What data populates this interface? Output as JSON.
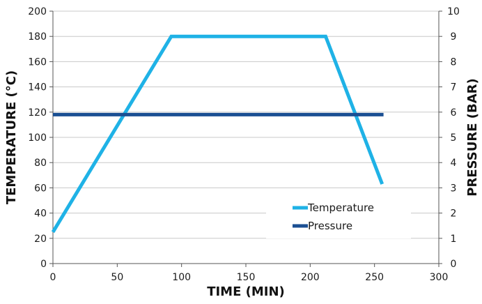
{
  "chart_data": {
    "type": "line",
    "xlabel": "TIME (MIN)",
    "ylabel": "TEMPERATURE (°C)",
    "y2label": "PRESSURE (BAR)",
    "xlim": [
      0,
      300
    ],
    "ylim": [
      0,
      200
    ],
    "y2lim": [
      0,
      10
    ],
    "x_ticks": [
      "0",
      "50",
      "100",
      "150",
      "200",
      "250",
      "300"
    ],
    "y_ticks": [
      "0",
      "20",
      "40",
      "60",
      "80",
      "100",
      "120",
      "140",
      "160",
      "180",
      "200"
    ],
    "y2_ticks": [
      "0",
      "1",
      "2",
      "3",
      "4",
      "5",
      "6",
      "7",
      "8",
      "9",
      "10"
    ],
    "grid": "horizontal",
    "legend_position": "lower-right",
    "series": [
      {
        "name": "Temperature",
        "axis": "left",
        "color": "#1fb2e6",
        "points": [
          [
            0,
            25
          ],
          [
            92,
            180
          ],
          [
            212,
            180
          ],
          [
            256,
            63
          ]
        ]
      },
      {
        "name": "Pressure",
        "axis": "right",
        "color": "#1b4f93",
        "points": [
          [
            0,
            5.9
          ],
          [
            257,
            5.9
          ]
        ]
      }
    ]
  }
}
